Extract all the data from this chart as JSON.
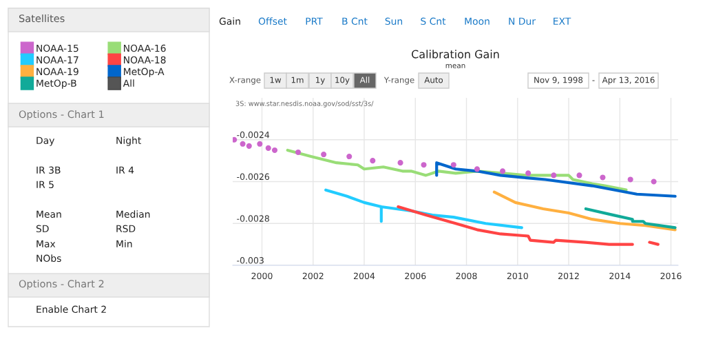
{
  "chart_data": {
    "type": "line",
    "title": "Calibration Gain",
    "subtitle": "mean",
    "xlim": [
      "1998-11-09",
      "2016-04-13"
    ],
    "xticks": [
      {
        "value": "2000",
        "label": "2000"
      },
      {
        "value": "2002",
        "label": "2002"
      },
      {
        "value": "2004",
        "label": "2004"
      },
      {
        "value": "2006",
        "label": "2006"
      },
      {
        "value": "2008",
        "label": "2008"
      },
      {
        "value": "2010",
        "label": "2010"
      },
      {
        "value": "2012",
        "label": "2012"
      },
      {
        "value": "2014",
        "label": "2014"
      },
      {
        "value": "2016",
        "label": "2016"
      }
    ],
    "ylim": [
      -0.003,
      -0.0022
    ],
    "yticks": [
      {
        "value": -0.003,
        "label": "-0.003"
      },
      {
        "value": -0.0028,
        "label": "-0.0028"
      },
      {
        "value": -0.0026,
        "label": "-0.0026"
      },
      {
        "value": -0.0024,
        "label": "-0.0024"
      }
    ],
    "grid": true,
    "legend": "left",
    "series": [
      {
        "name": "NOAA-15",
        "type": "scatter",
        "marker": "circle",
        "color": "#cc66cc",
        "x": [
          "1998-12",
          "1999-04",
          "1999-07",
          "1999-12",
          "2000-04",
          "2000-07",
          "2001-06",
          "2002-06",
          "2003-06",
          "2004-05",
          "2005-06",
          "2006-05",
          "2007-07",
          "2008-06",
          "2009-06",
          "2010-06",
          "2011-06",
          "2012-06",
          "2013-05",
          "2014-06",
          "2015-05"
        ],
        "values": [
          -0.0024,
          -0.00242,
          -0.00243,
          -0.00242,
          -0.00244,
          -0.00245,
          -0.00246,
          -0.00247,
          -0.00248,
          -0.0025,
          -0.00251,
          -0.00252,
          -0.00252,
          -0.00254,
          -0.00255,
          -0.00256,
          -0.00257,
          -0.00257,
          -0.00258,
          -0.00259,
          -0.0026
        ]
      },
      {
        "name": "NOAA-16",
        "color": "#99dd77",
        "x": [
          "2001-01",
          "2001-12",
          "2002-12",
          "2003-10",
          "2004-01",
          "2004-10",
          "2005-07",
          "2005-11",
          "2006-06",
          "2006-12",
          "2007-08",
          "2008-06",
          "2009-06",
          "2010-05",
          "2011-04",
          "2012-01",
          "2012-03",
          "2012-12",
          "2013-06",
          "2014-04"
        ],
        "values": [
          -0.00245,
          -0.00248,
          -0.00251,
          -0.00252,
          -0.00254,
          -0.00253,
          -0.00255,
          -0.00255,
          -0.00257,
          -0.00255,
          -0.00256,
          -0.00255,
          -0.00256,
          -0.00257,
          -0.00257,
          -0.00257,
          -0.00259,
          -0.00261,
          -0.00262,
          -0.00264
        ]
      },
      {
        "name": "NOAA-17",
        "color": "#22ccff",
        "x": [
          "2002-07",
          "2003-05",
          "2004-01",
          "2004-09",
          "2004-09",
          "2004-09",
          "2005-11",
          "2006-09",
          "2007-07",
          "2008-10",
          "2010-03"
        ],
        "values": [
          -0.00264,
          -0.00267,
          -0.0027,
          -0.00272,
          -0.00279,
          -0.00272,
          -0.00274,
          -0.00276,
          -0.00277,
          -0.0028,
          -0.00282
        ]
      },
      {
        "name": "NOAA-18",
        "color": "#ff4444",
        "x": [
          "2005-05",
          "2006-06",
          "2007-08",
          "2008-06",
          "2009-05",
          "2010-06",
          "2010-07",
          "2011-06",
          "2011-07",
          "2012-09",
          "2013-08",
          "2014-07",
          "2014-12",
          "2015-03",
          "2015-07"
        ],
        "values": [
          -0.00272,
          -0.00276,
          -0.0028,
          -0.00283,
          -0.00285,
          -0.00286,
          -0.00288,
          -0.00289,
          -0.00288,
          -0.00289,
          -0.0029,
          -0.0029,
          null,
          -0.00289,
          -0.0029
        ]
      },
      {
        "name": "NOAA-19",
        "color": "#ffb040",
        "x": [
          "2009-02",
          "2009-12",
          "2011-01",
          "2012-01",
          "2012-12",
          "2014-01",
          "2015-01",
          "2016-03"
        ],
        "values": [
          -0.00265,
          -0.0027,
          -0.00273,
          -0.00275,
          -0.00278,
          -0.0028,
          -0.00281,
          -0.00283
        ]
      },
      {
        "name": "MetOp-A",
        "color": "#0066cc",
        "x": [
          "2006-11",
          "2006-11",
          "2007-08",
          "2008-06",
          "2009-05",
          "2010-03",
          "2011-02",
          "2012-12",
          "2014-09",
          "2016-03"
        ],
        "values": [
          -0.00257,
          -0.00251,
          -0.00254,
          -0.00255,
          -0.00257,
          -0.00258,
          -0.00259,
          -0.00262,
          -0.00266,
          -0.00267
        ]
      },
      {
        "name": "MetOp-B",
        "color": "#11aa99",
        "x": [
          "2012-09",
          "2013-10",
          "2014-07",
          "2014-07",
          "2014-12",
          "2015-01",
          "2016-03"
        ],
        "values": [
          -0.00273,
          -0.00276,
          -0.00278,
          -0.00279,
          -0.00279,
          -0.0028,
          -0.00282
        ]
      },
      {
        "name": "All",
        "color": "#555555"
      }
    ],
    "annotations": [
      "3S: www.star.nesdis.noaa.gov/sod/sst/3s/",
      "Satellites",
      "Options - Chart 1",
      "Day",
      "Night",
      "IR 3B",
      "IR 4",
      "IR 5",
      "Mean",
      "Median",
      "SD",
      "RSD",
      "Max",
      "Min",
      "NObs",
      "Options - Chart 2",
      "Enable Chart 2",
      "Gain",
      "Offset",
      "PRT",
      "B Cnt",
      "Sun",
      "S Cnt",
      "Moon",
      "N Dur",
      "EXT",
      "X-range",
      "1w",
      "1m",
      "1y",
      "10y",
      "All",
      "Y-range",
      "Auto",
      "Nov 9, 1998",
      "-",
      "Apr 13, 2016"
    ]
  }
}
